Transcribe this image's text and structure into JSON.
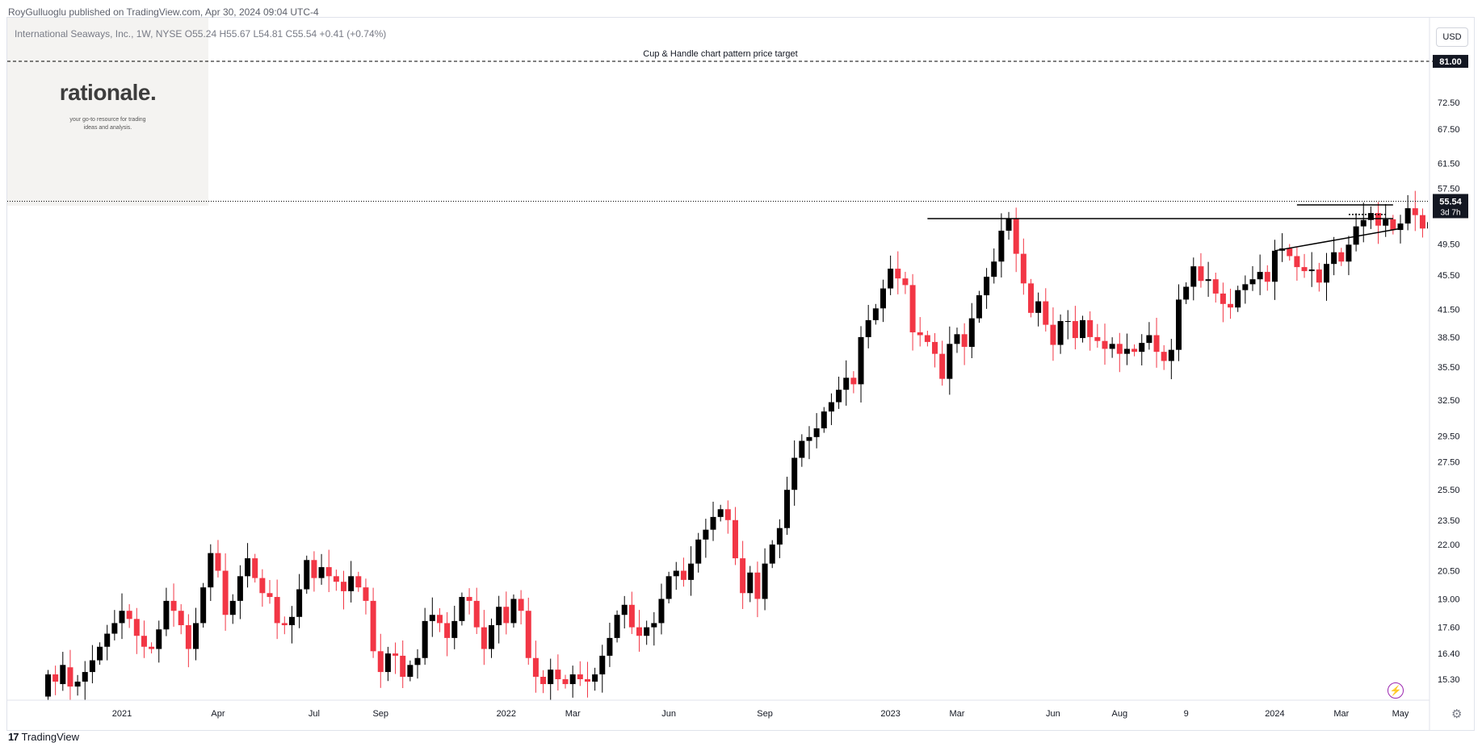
{
  "publish_line": "RoyGulluoglu published on TradingView.com, Apr 30, 2024 09:04 UTC-4",
  "legend": "International Seaways, Inc., 1W, NYSE  O55.24  H55.67  L54.81  C55.54  +0.41 (+0.74%)",
  "currency": "USD",
  "watermark": {
    "title": "rationale.",
    "subtitle_line1": "your go-to resource for trading",
    "subtitle_line2": "ideas and analysis."
  },
  "brand": "TradingView",
  "brand_logo": "17",
  "colors": {
    "up": "#000000",
    "down": "#f23645",
    "background": "#ffffff",
    "grid": "#e0e3eb",
    "text": "#131722"
  },
  "icons": {
    "bolt": "lightning-icon",
    "gear": "gear-icon"
  },
  "chart_data": {
    "type": "candlestick",
    "timeframe": "1W",
    "symbol": "International Seaways, Inc.",
    "exchange": "NYSE",
    "ohlc_last": {
      "open": 55.24,
      "high": 55.67,
      "low": 54.81,
      "close": 55.54,
      "change": 0.41,
      "change_pct": 0.74
    },
    "price_scale": "log",
    "y_ticks": [
      15.3,
      16.4,
      17.6,
      19.0,
      20.5,
      22.0,
      23.5,
      25.5,
      27.5,
      29.5,
      32.5,
      35.5,
      38.5,
      41.5,
      45.5,
      49.5,
      57.5,
      61.5,
      67.5,
      72.5
    ],
    "y_tick_labels": [
      "15.30",
      "16.40",
      "17.60",
      "19.00",
      "20.50",
      "22.00",
      "23.50",
      "25.50",
      "27.50",
      "29.50",
      "32.50",
      "35.50",
      "38.50",
      "41.50",
      "45.50",
      "49.50",
      "57.50",
      "61.50",
      "67.50",
      "72.50"
    ],
    "x_ticks": [
      {
        "label": "2021",
        "date": "2021-01-04"
      },
      {
        "label": "Apr",
        "date": "2021-04-05"
      },
      {
        "label": "Jul",
        "date": "2021-07-05"
      },
      {
        "label": "Sep",
        "date": "2021-09-06"
      },
      {
        "label": "2022",
        "date": "2022-01-03"
      },
      {
        "label": "Mar",
        "date": "2022-03-07"
      },
      {
        "label": "Jun",
        "date": "2022-06-06"
      },
      {
        "label": "Sep",
        "date": "2022-09-05"
      },
      {
        "label": "2023",
        "date": "2023-01-02"
      },
      {
        "label": "Mar",
        "date": "2023-03-06"
      },
      {
        "label": "Jun",
        "date": "2023-06-05"
      },
      {
        "label": "Aug",
        "date": "2023-08-07"
      },
      {
        "label": "9",
        "date": "2023-10-09"
      },
      {
        "label": "2024",
        "date": "2024-01-01"
      },
      {
        "label": "Mar",
        "date": "2024-03-04"
      },
      {
        "label": "May",
        "date": "2024-04-29"
      }
    ],
    "closes": [
      [
        14.6,
        15.5
      ],
      [
        15.5,
        15.2
      ],
      [
        15.1,
        15.9
      ],
      [
        15.8,
        15.0
      ],
      [
        15.0,
        15.2
      ],
      [
        15.2,
        15.6
      ],
      [
        15.6,
        16.1
      ],
      [
        16.1,
        16.7
      ],
      [
        16.7,
        17.3
      ],
      [
        17.3,
        17.8
      ],
      [
        17.8,
        18.4
      ],
      [
        18.4,
        18.0
      ],
      [
        18.0,
        17.2
      ],
      [
        17.2,
        16.7
      ],
      [
        16.7,
        16.6
      ],
      [
        16.6,
        17.5
      ],
      [
        17.5,
        18.9
      ],
      [
        18.9,
        18.4
      ],
      [
        18.4,
        17.7
      ],
      [
        17.7,
        16.6
      ],
      [
        16.6,
        17.8
      ],
      [
        17.8,
        19.6
      ],
      [
        19.6,
        21.5
      ],
      [
        21.5,
        20.5
      ],
      [
        20.5,
        18.2
      ],
      [
        18.2,
        18.9
      ],
      [
        18.9,
        20.2
      ],
      [
        20.2,
        21.2
      ],
      [
        21.2,
        20.1
      ],
      [
        20.1,
        19.3
      ],
      [
        19.3,
        19.1
      ],
      [
        19.1,
        17.8
      ],
      [
        17.8,
        17.7
      ],
      [
        17.7,
        18.1
      ],
      [
        18.1,
        19.5
      ],
      [
        19.5,
        21.1
      ],
      [
        21.1,
        20.1
      ],
      [
        20.1,
        20.7
      ],
      [
        20.7,
        20.2
      ],
      [
        20.2,
        19.9
      ],
      [
        19.9,
        19.4
      ],
      [
        19.4,
        20.2
      ],
      [
        20.2,
        19.6
      ],
      [
        19.6,
        18.9
      ],
      [
        18.9,
        16.5
      ],
      [
        16.5,
        15.6
      ],
      [
        15.6,
        16.4
      ],
      [
        16.4,
        16.3
      ],
      [
        16.3,
        15.4
      ],
      [
        15.4,
        15.9
      ],
      [
        15.9,
        16.2
      ],
      [
        16.2,
        17.9
      ],
      [
        17.9,
        18.2
      ],
      [
        18.2,
        17.8
      ],
      [
        17.8,
        17.1
      ],
      [
        17.1,
        17.9
      ],
      [
        17.9,
        19.1
      ],
      [
        19.1,
        18.9
      ],
      [
        18.9,
        17.6
      ],
      [
        17.6,
        16.6
      ],
      [
        16.6,
        17.7
      ],
      [
        17.7,
        18.6
      ],
      [
        18.6,
        17.8
      ],
      [
        17.8,
        19.0
      ],
      [
        19.0,
        18.4
      ],
      [
        18.4,
        16.2
      ],
      [
        16.2,
        15.4
      ],
      [
        15.4,
        15.1
      ],
      [
        15.1,
        15.7
      ],
      [
        15.7,
        15.3
      ],
      [
        15.3,
        15.1
      ],
      [
        15.1,
        15.5
      ],
      [
        15.5,
        15.3
      ],
      [
        15.3,
        15.2
      ],
      [
        15.2,
        15.5
      ],
      [
        15.5,
        16.3
      ],
      [
        16.3,
        17.1
      ],
      [
        17.1,
        18.2
      ],
      [
        18.2,
        18.7
      ],
      [
        18.7,
        17.6
      ],
      [
        17.6,
        17.2
      ],
      [
        17.2,
        17.6
      ],
      [
        17.6,
        17.8
      ],
      [
        17.8,
        19.0
      ],
      [
        19.0,
        20.2
      ],
      [
        20.2,
        20.5
      ],
      [
        20.5,
        20.0
      ],
      [
        20.0,
        20.9
      ],
      [
        20.9,
        22.3
      ],
      [
        22.3,
        22.9
      ],
      [
        22.9,
        23.7
      ],
      [
        23.7,
        24.2
      ],
      [
        24.2,
        23.5
      ],
      [
        23.5,
        21.2
      ],
      [
        21.2,
        19.3
      ],
      [
        19.3,
        20.4
      ],
      [
        20.4,
        19.0
      ],
      [
        19.0,
        20.9
      ],
      [
        20.9,
        22.0
      ],
      [
        22.0,
        23.0
      ],
      [
        23.0,
        25.5
      ],
      [
        25.5,
        27.8
      ],
      [
        27.8,
        29.1
      ],
      [
        29.1,
        29.4
      ],
      [
        29.4,
        30.1
      ],
      [
        30.1,
        31.5
      ],
      [
        31.5,
        32.3
      ],
      [
        32.3,
        33.4
      ],
      [
        33.4,
        34.5
      ],
      [
        34.5,
        33.9
      ],
      [
        33.9,
        38.5
      ],
      [
        38.5,
        40.3
      ],
      [
        40.3,
        41.6
      ],
      [
        41.6,
        43.9
      ],
      [
        43.9,
        46.3
      ],
      [
        46.3,
        45.1
      ],
      [
        45.1,
        44.3
      ],
      [
        44.3,
        39.0
      ],
      [
        39.0,
        38.7
      ],
      [
        38.7,
        38.0
      ],
      [
        38.0,
        36.8
      ],
      [
        36.8,
        34.4
      ],
      [
        34.4,
        37.8
      ],
      [
        37.8,
        38.8
      ],
      [
        38.8,
        37.5
      ],
      [
        37.5,
        40.5
      ],
      [
        40.5,
        43.1
      ],
      [
        43.1,
        45.3
      ],
      [
        45.3,
        47.2
      ],
      [
        47.2,
        51.3
      ],
      [
        51.3,
        53.0
      ],
      [
        53.0,
        48.2
      ],
      [
        48.2,
        44.5
      ],
      [
        44.5,
        41.1
      ],
      [
        41.1,
        42.4
      ],
      [
        42.4,
        39.8
      ],
      [
        39.8,
        37.7
      ],
      [
        37.7,
        40.2
      ],
      [
        40.2,
        40.2
      ],
      [
        40.2,
        38.4
      ],
      [
        38.4,
        40.3
      ],
      [
        40.3,
        38.5
      ],
      [
        38.5,
        38.1
      ],
      [
        38.1,
        37.3
      ],
      [
        37.3,
        37.8
      ],
      [
        37.8,
        36.8
      ],
      [
        36.8,
        37.3
      ],
      [
        37.3,
        37.0
      ],
      [
        37.0,
        37.9
      ],
      [
        37.9,
        38.7
      ],
      [
        38.7,
        37.0
      ],
      [
        37.0,
        36.1
      ],
      [
        36.1,
        37.2
      ],
      [
        37.2,
        42.6
      ],
      [
        42.6,
        44.1
      ],
      [
        44.1,
        46.6
      ],
      [
        46.6,
        44.8
      ],
      [
        44.8,
        45.0
      ],
      [
        45.0,
        43.3
      ],
      [
        43.3,
        42.1
      ],
      [
        42.1,
        41.7
      ],
      [
        41.7,
        43.7
      ],
      [
        43.7,
        44.4
      ],
      [
        44.4,
        45.0
      ],
      [
        45.0,
        45.9
      ],
      [
        45.9,
        44.7
      ],
      [
        44.7,
        48.6
      ],
      [
        48.6,
        48.9
      ],
      [
        48.9,
        47.9
      ],
      [
        47.9,
        46.5
      ],
      [
        46.5,
        46.0
      ],
      [
        46.0,
        46.2
      ],
      [
        46.2,
        44.6
      ],
      [
        44.6,
        46.9
      ],
      [
        46.9,
        48.4
      ],
      [
        48.4,
        47.2
      ],
      [
        47.2,
        49.4
      ],
      [
        49.4,
        51.9
      ],
      [
        51.9,
        52.8
      ],
      [
        52.8,
        53.8
      ],
      [
        53.8,
        52.0
      ],
      [
        52.0,
        52.9
      ],
      [
        52.9,
        51.4
      ],
      [
        51.4,
        52.3
      ],
      [
        52.3,
        54.5
      ],
      [
        54.5,
        53.5
      ],
      [
        53.5,
        51.6
      ],
      [
        51.6,
        52.5
      ],
      [
        52.5,
        53.4
      ],
      [
        53.4,
        52.4
      ],
      [
        52.4,
        52.9
      ],
      [
        52.9,
        55.1
      ],
      [
        55.1,
        55.54
      ]
    ],
    "horizontal_lines": [
      {
        "price": 81.0,
        "label": "Cup & Handle chart pattern price target",
        "style": "dashed"
      },
      {
        "price": 53.0,
        "style": "solid",
        "from": "2023-02-06"
      },
      {
        "price": 55.0,
        "style": "solid",
        "from": "2024-01-22"
      },
      {
        "price": 53.6,
        "style": "dotted",
        "from": "2024-03-11"
      }
    ],
    "trendline": {
      "from": {
        "date": "2024-01-01",
        "price": 48.6
      },
      "to": {
        "date": "2024-04-29",
        "price": 51.6
      }
    },
    "last_price_label": "55.54",
    "countdown_label": "3d 7h",
    "target_label": "81.00"
  }
}
